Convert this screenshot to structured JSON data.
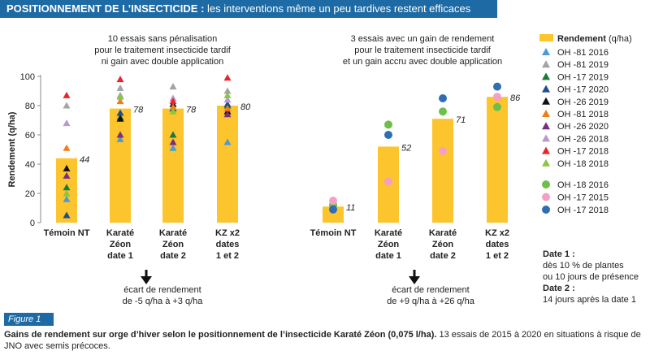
{
  "header": {
    "prefix": "POSITIONNEMENT DE L’INSECTICIDE :",
    "title": "les interventions même un peu tardives restent efficaces"
  },
  "figure_label": "Figure 1",
  "caption": {
    "bold": "Gains de rendement sur orge d’hiver selon le positionnement de l’insecticide Karaté Zéon (0,075 l/ha).",
    "normal": " 13 essais de 2015 à 2020 en situations à risque de JNO avec semis précoces."
  },
  "chart_data": {
    "type": "bar",
    "ylabel": "Rendement (q/ha)",
    "ylim": [
      0,
      100
    ],
    "yticks": [
      0,
      20,
      40,
      60,
      80,
      100
    ],
    "panels": [
      {
        "note": [
          "10 essais  sans pénalisation",
          "pour le traitement insecticide tardif",
          "ni gain avec double application"
        ],
        "categories": [
          [
            "Témoin NT"
          ],
          [
            "Karaté",
            "Zéon",
            "date 1"
          ],
          [
            "Karaté",
            "Zéon",
            "date 2"
          ],
          [
            "KZ x2",
            "dates",
            "1 et 2"
          ]
        ],
        "values": [
          44,
          78,
          78,
          80
        ],
        "value_labels": [
          "44",
          "78",
          "78",
          "80"
        ],
        "points": [
          {
            "series": "OH -81 2016",
            "values": [
              16,
              57,
              51,
              55
            ]
          },
          {
            "series": "OH -81 2019",
            "values": [
              80,
              92,
              93,
              90
            ]
          },
          {
            "series": "OH -17 2019",
            "values": [
              24,
              72,
              60,
              80
            ]
          },
          {
            "series": "OH -17 2020",
            "values": [
              5,
              75,
              78,
              81
            ]
          },
          {
            "series": "OH -26 2019",
            "values": [
              37,
              71,
              81,
              76
            ]
          },
          {
            "series": "OH -81 2018",
            "values": [
              51,
              83,
              79,
              78
            ]
          },
          {
            "series": "OH -26 2020",
            "values": [
              32,
              60,
              55,
              74
            ]
          },
          {
            "series": "OH -26 2018",
            "values": [
              68,
              87,
              85,
              84
            ]
          },
          {
            "series": "OH -17 2018",
            "values": [
              87,
              98,
              83,
              99
            ]
          },
          {
            "series": "OH -18 2018",
            "values": [
              20,
              86,
              76,
              87
            ]
          }
        ]
      },
      {
        "note": [
          "3 essais avec un gain de rendement",
          "pour le traitement insecticide tardif",
          "et un gain accru avec double application"
        ],
        "categories": [
          [
            "Témoin NT"
          ],
          [
            "Karaté",
            "Zéon",
            "date 1"
          ],
          [
            "Karaté",
            "Zéon",
            "date 2"
          ],
          [
            "KZ x2",
            "dates",
            "1 et 2"
          ]
        ],
        "values": [
          11,
          52,
          71,
          86
        ],
        "value_labels": [
          "11",
          "52",
          "71",
          "86"
        ],
        "points": [
          {
            "series": "OH -18 2016",
            "values": [
              12,
              67,
              76,
              79
            ]
          },
          {
            "series": "OH -17 2015",
            "values": [
              15,
              28,
              49,
              86
            ]
          },
          {
            "series": "OH -17 2018",
            "values": [
              9,
              60,
              85,
              93
            ]
          }
        ]
      }
    ],
    "legend": {
      "placement": "right",
      "bar": {
        "label": "Rendement",
        "unit": "(q/ha)",
        "color": "#fcc42d"
      },
      "triangles": [
        {
          "label": "OH -81 2016",
          "color": "#4a9bd6"
        },
        {
          "label": "OH -81 2019",
          "color": "#a3a3a3"
        },
        {
          "label": "OH -17 2019",
          "color": "#1a7a3c"
        },
        {
          "label": "OH -17 2020",
          "color": "#1e4f8c"
        },
        {
          "label": "OH -26 2019",
          "color": "#111111"
        },
        {
          "label": "OH -81 2018",
          "color": "#f07d1a"
        },
        {
          "label": "OH -26 2020",
          "color": "#7b2d82"
        },
        {
          "label": "OH -26 2018",
          "color": "#b49ad3"
        },
        {
          "label": "OH -17 2018",
          "color": "#e8242c"
        },
        {
          "label": "OH -18 2018",
          "color": "#8cc63f"
        }
      ],
      "circles": [
        {
          "label": "OH -18 2016",
          "color": "#6cc04a"
        },
        {
          "label": "OH -17 2015",
          "color": "#f59fc5"
        },
        {
          "label": "OH -17 2018",
          "color": "#2f6db5"
        }
      ]
    },
    "arrows": [
      {
        "lines": [
          "écart de rendement",
          "de -5 q/ha à +3 q/ha"
        ]
      },
      {
        "lines": [
          "écart de rendement",
          "de +9 q/ha à +26 q/ha"
        ]
      }
    ],
    "dates": [
      {
        "title": "Date 1 :",
        "lines": [
          "dès 10 % de plantes",
          "ou 10 jours de présence"
        ]
      },
      {
        "title": "Date 2 :",
        "lines": [
          "14 jours après la date 1"
        ]
      }
    ]
  }
}
